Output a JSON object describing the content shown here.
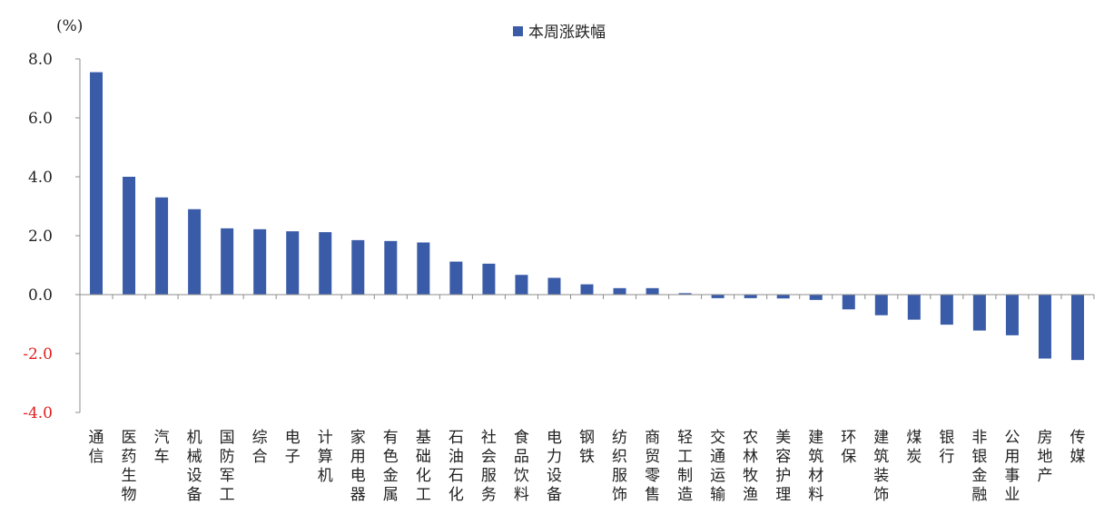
{
  "chart_data": {
    "type": "bar",
    "unit_label": "(%)",
    "legend": "本周涨跌幅",
    "legend_position": "top-center",
    "ylim": [
      -4.0,
      8.0
    ],
    "yticks": [
      "8.0",
      "6.0",
      "4.0",
      "2.0",
      "0.0",
      "-2.0",
      "-4.0"
    ],
    "ytick_values": [
      8,
      6,
      4,
      2,
      0,
      -2,
      -4
    ],
    "grid": false,
    "colors": {
      "bar": "#3a5ca8",
      "axis": "#8c8c8c",
      "positive_tick": "#222222",
      "negative_tick": "#e02020"
    },
    "categories": [
      "通信",
      "医药生物",
      "汽车",
      "机械设备",
      "国防军工",
      "综合",
      "电子",
      "计算机",
      "家用电器",
      "有色金属",
      "基础化工",
      "石油石化",
      "社会服务",
      "食品饮料",
      "电力设备",
      "钢铁",
      "纺织服饰",
      "商贸零售",
      "轻工制造",
      "交通运输",
      "农林牧渔",
      "美容护理",
      "建筑材料",
      "环保",
      "建筑装饰",
      "煤炭",
      "银行",
      "非银金融",
      "公用事业",
      "房地产",
      "传媒"
    ],
    "series": [
      {
        "name": "本周涨跌幅",
        "values": [
          7.55,
          4.0,
          3.3,
          2.9,
          2.25,
          2.22,
          2.15,
          2.12,
          1.85,
          1.82,
          1.77,
          1.12,
          1.05,
          0.67,
          0.57,
          0.35,
          0.22,
          0.22,
          0.05,
          -0.12,
          -0.12,
          -0.13,
          -0.18,
          -0.5,
          -0.7,
          -0.85,
          -1.02,
          -1.22,
          -1.38,
          -2.17,
          -2.22
        ]
      }
    ]
  }
}
